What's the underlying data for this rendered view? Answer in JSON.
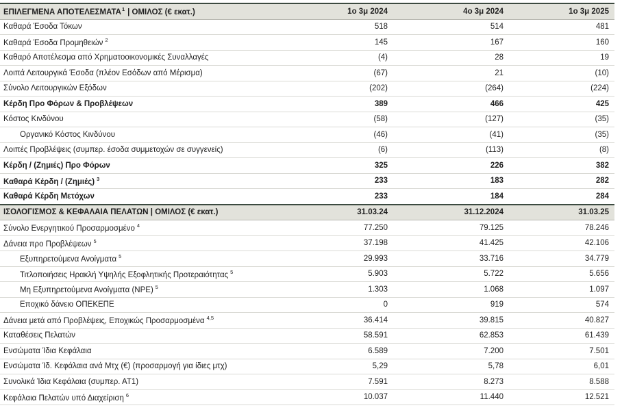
{
  "sections": [
    {
      "title": "ΕΠΙΛΕΓΜΕΝΑ ΑΠΟΤΕΛΕΣΜΑΤΑ",
      "title_note": "1",
      "title_suffix": "| ΟΜΙΛΟΣ (€ εκατ.)",
      "columns": [
        "1ο 3μ 2024",
        "4ο 3μ 2024",
        "1ο 3μ 2025"
      ],
      "rows": [
        {
          "label": "Καθαρά Έσοδα Τόκων",
          "values": [
            "518",
            "514",
            "481"
          ]
        },
        {
          "label": "Καθαρά Έσοδα Προμηθειών",
          "note": "2",
          "values": [
            "145",
            "167",
            "160"
          ]
        },
        {
          "label": "Καθαρό Αποτέλεσμα από Χρηματοοικονομικές Συναλλαγές",
          "values": [
            "(4)",
            "28",
            "19"
          ]
        },
        {
          "label": "Λοιπά Λειτουργικά Έσοδα (πλέον Εσόδων από Μέρισμα)",
          "values": [
            "(67)",
            "21",
            "(10)"
          ]
        },
        {
          "label": "Σύνολο Λειτουργικών Εξόδων",
          "values": [
            "(202)",
            "(264)",
            "(224)"
          ]
        },
        {
          "label": "Κέρδη Προ Φόρων & Προβλέψεων",
          "bold": true,
          "values": [
            "389",
            "466",
            "425"
          ]
        },
        {
          "label": "Κόστος Κινδύνου",
          "values": [
            "(58)",
            "(127)",
            "(35)"
          ]
        },
        {
          "label": "Οργανικό Κόστος Κινδύνου",
          "indent": true,
          "values": [
            "(46)",
            "(41)",
            "(35)"
          ]
        },
        {
          "label": "Λοιπές Προβλέψεις (συμπερ. έσοδα συμμετοχών σε συγγενείς)",
          "values": [
            "(6)",
            "(113)",
            "(8)"
          ]
        },
        {
          "label": "Κέρδη / (Ζημιές) Προ Φόρων",
          "bold": true,
          "values": [
            "325",
            "226",
            "382"
          ]
        },
        {
          "label": "Καθαρά Κέρδη / (Ζημιές)",
          "note": "3",
          "bold": true,
          "values": [
            "233",
            "183",
            "282"
          ]
        },
        {
          "label": "Καθαρά Κέρδη Μετόχων",
          "bold": true,
          "values": [
            "233",
            "184",
            "284"
          ]
        }
      ]
    },
    {
      "title": "ΙΣΟΛΟΓΙΣΜΟΣ & ΚΕΦΑΛΑΙΑ ΠΕΛΑΤΩΝ | ΟΜΙΛΟΣ (€ εκατ.)",
      "columns": [
        "31.03.24",
        "31.12.2024",
        "31.03.25"
      ],
      "rows": [
        {
          "label": "Σύνολο Ενεργητικού Προσαρμοσμένο",
          "note": "4",
          "values": [
            "77.250",
            "79.125",
            "78.246"
          ]
        },
        {
          "label": "Δάνεια προ Προβλέψεων",
          "note": "5",
          "values": [
            "37.198",
            "41.425",
            "42.106"
          ]
        },
        {
          "label": "Εξυπηρετούμενα Ανοίγματα",
          "note": "5",
          "indent": true,
          "values": [
            "29.993",
            "33.716",
            "34.779"
          ]
        },
        {
          "label": "Τιτλοποιήσεις Ηρακλή Υψηλής Εξοφλητικής Προτεραιότητας",
          "note": "5",
          "indent": true,
          "values": [
            "5.903",
            "5.722",
            "5.656"
          ]
        },
        {
          "label": "Μη Εξυπηρετούμενα Ανοίγματα (NPE)",
          "note": "5",
          "indent": true,
          "values": [
            "1.303",
            "1.068",
            "1.097"
          ]
        },
        {
          "label": "Εποχικό δάνειο ΟΠΕΚΕΠΕ",
          "indent": true,
          "values": [
            "0",
            "919",
            "574"
          ]
        },
        {
          "label": "Δάνεια μετά από Προβλέψεις, Εποχικώς Προσαρμοσμένα",
          "note": "4,5",
          "values": [
            "36.414",
            "39.815",
            "40.827"
          ]
        },
        {
          "label": "Καταθέσεις Πελατών",
          "values": [
            "58.591",
            "62.853",
            "61.439"
          ]
        },
        {
          "label": "Ενσώματα Ίδια Κεφάλαια",
          "values": [
            "6.589",
            "7.200",
            "7.501"
          ]
        },
        {
          "label": "Ενσώματα Ίδ. Κεφάλαια ανά Μτχ (€) (προσαρμογή για ίδιες μτχ)",
          "values": [
            "5,29",
            "5,78",
            "6,01"
          ]
        },
        {
          "label": "Συνολικά Ίδια Κεφάλαια (συμπερ. ΑΤ1)",
          "values": [
            "7.591",
            "8.273",
            "8.588"
          ]
        },
        {
          "label": "Κεφάλαια Πελατών υπό Διαχείριση",
          "note": "6",
          "values": [
            "10.037",
            "11.440",
            "12.521"
          ]
        }
      ]
    }
  ]
}
